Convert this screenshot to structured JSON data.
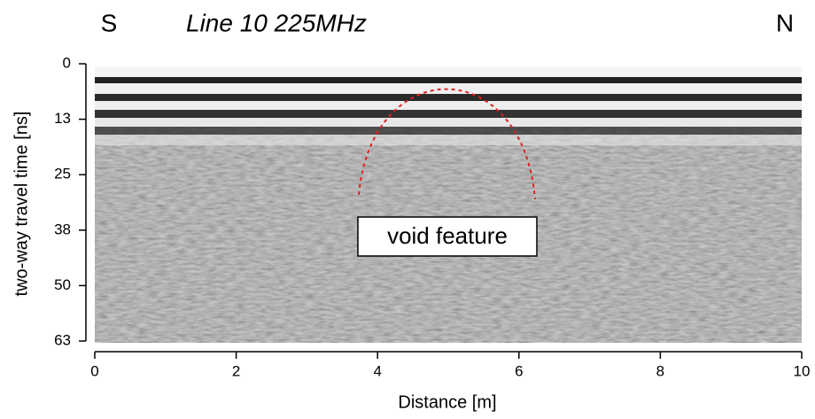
{
  "chart_data": {
    "type": "radargram",
    "title": "Line 10 225MHz",
    "left_label": "S",
    "right_label": "N",
    "xlabel": "Distance [m]",
    "ylabel": "two-way travel time [ns]",
    "annotation": "void feature",
    "xlim": [
      0,
      10
    ],
    "xticks": [
      0,
      2,
      4,
      6,
      8,
      10
    ],
    "ylim": [
      0,
      63
    ],
    "y_inverted": true,
    "yticks": [
      0,
      {
        "value": 12.6,
        "label": "13"
      },
      {
        "value": 25.2,
        "label": "25"
      },
      {
        "value": 37.8,
        "label": "38"
      },
      {
        "value": 50.4,
        "label": "50"
      },
      63
    ]
  }
}
